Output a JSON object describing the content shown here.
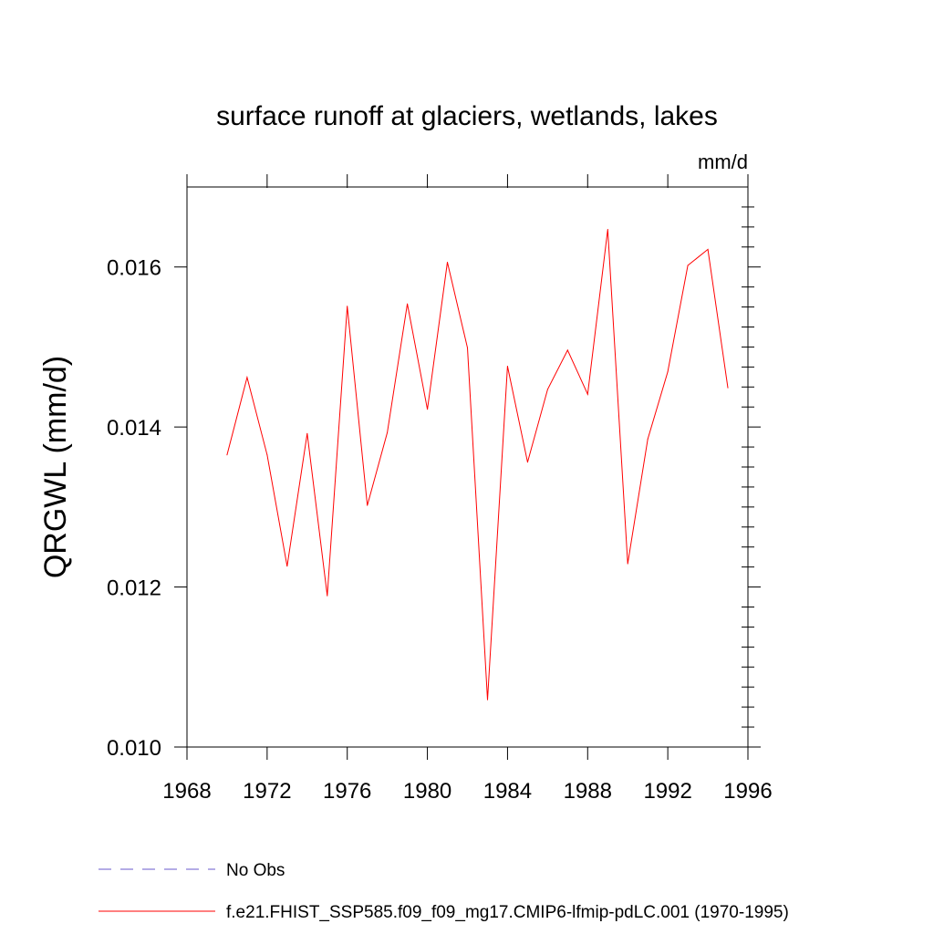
{
  "chart_data": {
    "type": "line",
    "title": "surface runoff at glaciers, wetlands, lakes",
    "units": "mm/d",
    "xlabel": "",
    "ylabel": "QRGWL  (mm/d)",
    "xlim": [
      1968,
      1996
    ],
    "ylim": [
      0.01,
      0.017
    ],
    "xticks": [
      1968,
      1972,
      1976,
      1980,
      1984,
      1988,
      1992,
      1996
    ],
    "xtick_labels": [
      "1968",
      "1972",
      "1976",
      "1980",
      "1984",
      "1988",
      "1992",
      "1996"
    ],
    "yticks": [
      0.01,
      0.012,
      0.014,
      0.016
    ],
    "ytick_labels": [
      "0.010",
      "0.012",
      "0.014",
      "0.016"
    ],
    "grid": false,
    "legend_position": "bottom",
    "series": [
      {
        "name": "f.e21.FHIST_SSP585.f09_f09_mg17.CMIP6-lfmip-pdLC.001 (1970-1995)",
        "color": "#ff0000",
        "style": "solid",
        "x": [
          1970,
          1971,
          1972,
          1973,
          1974,
          1975,
          1976,
          1977,
          1978,
          1979,
          1980,
          1981,
          1982,
          1983,
          1984,
          1985,
          1986,
          1987,
          1988,
          1989,
          1990,
          1991,
          1992,
          1993,
          1994,
          1995
        ],
        "values": [
          0.01365,
          0.01462,
          0.01365,
          0.01226,
          0.01392,
          0.01189,
          0.01551,
          0.01302,
          0.01393,
          0.01554,
          0.01422,
          0.01606,
          0.01499,
          0.01059,
          0.01476,
          0.01356,
          0.01447,
          0.01496,
          0.01441,
          0.01647,
          0.01229,
          0.01385,
          0.01469,
          0.01602,
          0.01622,
          0.01449
        ]
      }
    ],
    "legend": [
      {
        "label": "No Obs",
        "color": "#6a5acd",
        "style": "dashed"
      },
      {
        "label": "f.e21.FHIST_SSP585.f09_f09_mg17.CMIP6-lfmip-pdLC.001 (1970-1995)",
        "color": "#ff0000",
        "style": "solid"
      }
    ]
  }
}
